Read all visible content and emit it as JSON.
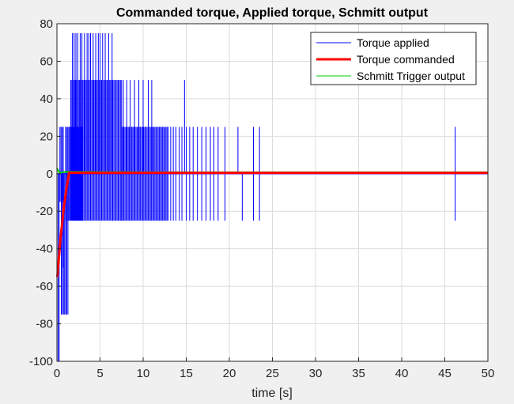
{
  "chart_data": {
    "type": "line",
    "title": "Commanded torque, Applied torque, Schmitt output",
    "xlabel": "time [s]",
    "ylabel": "",
    "xlim": [
      0,
      50
    ],
    "ylim": [
      -100,
      80
    ],
    "x_ticks": [
      "0",
      "5",
      "10",
      "15",
      "20",
      "25",
      "30",
      "35",
      "40",
      "45",
      "50"
    ],
    "y_ticks": [
      "-100",
      "-80",
      "-60",
      "-40",
      "-20",
      "0",
      "20",
      "40",
      "60",
      "80"
    ],
    "grid": true,
    "legend_position": "top-right",
    "series": [
      {
        "name": "Torque applied",
        "color": "#0000ff",
        "style": "dense square-wave switching",
        "bands": [
          {
            "x": [
              0.0,
              0.35
            ],
            "range": [
              -100,
              0
            ]
          },
          {
            "x": [
              0.35,
              0.8
            ],
            "range": [
              -15,
              25
            ]
          },
          {
            "x": [
              0.5,
              0.8
            ],
            "range": [
              -50,
              0
            ]
          },
          {
            "x": [
              0.5,
              1.3
            ],
            "range": [
              -75,
              0
            ]
          },
          {
            "x": [
              1.0,
              1.4
            ],
            "range": [
              -25,
              25
            ]
          },
          {
            "x": [
              1.4,
              3.0
            ],
            "range": [
              -25,
              25
            ]
          },
          {
            "x": [
              1.6,
              3.0
            ],
            "range": [
              -25,
              50
            ]
          },
          {
            "x": [
              3.0,
              7.5
            ],
            "range": [
              -25,
              50
            ]
          },
          {
            "x": [
              7.5,
              13.0
            ],
            "range": [
              -25,
              25
            ]
          }
        ],
        "spikes": [
          {
            "x": 1.8,
            "min": 0,
            "max": 75
          },
          {
            "x": 2.0,
            "min": 0,
            "max": 75
          },
          {
            "x": 2.2,
            "min": 0,
            "max": 75
          },
          {
            "x": 2.4,
            "min": 0,
            "max": 75
          },
          {
            "x": 2.7,
            "min": 0,
            "max": 75
          },
          {
            "x": 2.9,
            "min": 0,
            "max": 75
          },
          {
            "x": 3.2,
            "min": 0,
            "max": 75
          },
          {
            "x": 3.5,
            "min": 0,
            "max": 75
          },
          {
            "x": 3.7,
            "min": 0,
            "max": 75
          },
          {
            "x": 3.9,
            "min": 0,
            "max": 75
          },
          {
            "x": 4.2,
            "min": 0,
            "max": 75
          },
          {
            "x": 4.5,
            "min": 0,
            "max": 75
          },
          {
            "x": 4.8,
            "min": 0,
            "max": 75
          },
          {
            "x": 5.0,
            "min": 0,
            "max": 75
          },
          {
            "x": 5.3,
            "min": 0,
            "max": 75
          },
          {
            "x": 5.6,
            "min": 0,
            "max": 75
          },
          {
            "x": 6.0,
            "min": 0,
            "max": 75
          },
          {
            "x": 6.4,
            "min": 0,
            "max": 75
          },
          {
            "x": 7.7,
            "min": 0,
            "max": 50
          },
          {
            "x": 8.1,
            "min": 0,
            "max": 50
          },
          {
            "x": 8.5,
            "min": 0,
            "max": 50
          },
          {
            "x": 9.0,
            "min": 0,
            "max": 50
          },
          {
            "x": 9.5,
            "min": 0,
            "max": 50
          },
          {
            "x": 10.0,
            "min": 0,
            "max": 50
          },
          {
            "x": 10.6,
            "min": 0,
            "max": 50
          },
          {
            "x": 11.0,
            "min": 0,
            "max": 50
          },
          {
            "x": 14.8,
            "min": 0,
            "max": 50
          },
          {
            "x": 13.2,
            "min": -25,
            "max": 25
          },
          {
            "x": 13.5,
            "min": -25,
            "max": 25
          },
          {
            "x": 13.8,
            "min": -25,
            "max": 25
          },
          {
            "x": 14.2,
            "min": -25,
            "max": 25
          },
          {
            "x": 14.5,
            "min": -25,
            "max": 25
          },
          {
            "x": 15.0,
            "min": -25,
            "max": 25
          },
          {
            "x": 15.4,
            "min": -25,
            "max": 25
          },
          {
            "x": 15.8,
            "min": -25,
            "max": 25
          },
          {
            "x": 16.3,
            "min": -25,
            "max": 25
          },
          {
            "x": 16.8,
            "min": -25,
            "max": 25
          },
          {
            "x": 17.3,
            "min": -25,
            "max": 25
          },
          {
            "x": 17.8,
            "min": -25,
            "max": 25
          },
          {
            "x": 18.2,
            "min": -25,
            "max": 25
          },
          {
            "x": 18.7,
            "min": -25,
            "max": 25
          },
          {
            "x": 19.5,
            "min": -25,
            "max": 25
          },
          {
            "x": 21.0,
            "min": 0,
            "max": 25
          },
          {
            "x": 21.5,
            "min": -25,
            "max": 0
          },
          {
            "x": 22.8,
            "min": -25,
            "max": 25
          },
          {
            "x": 23.5,
            "min": -25,
            "max": 25
          },
          {
            "x": 46.2,
            "min": -25,
            "max": 25
          }
        ],
        "base_level": 0
      },
      {
        "name": "Torque commanded",
        "color": "#ff0000",
        "x": [
          0.05,
          0.4,
          0.8,
          1.1,
          1.4,
          50
        ],
        "y": [
          -55,
          -35,
          -18,
          -8,
          0.5,
          0.5
        ]
      },
      {
        "name": "Schmitt Trigger output",
        "color": "#00cc00",
        "x": [
          0,
          0.3,
          1.0,
          13.0,
          50
        ],
        "y": [
          3,
          0.5,
          1.0,
          0.8,
          0.8
        ]
      }
    ]
  }
}
